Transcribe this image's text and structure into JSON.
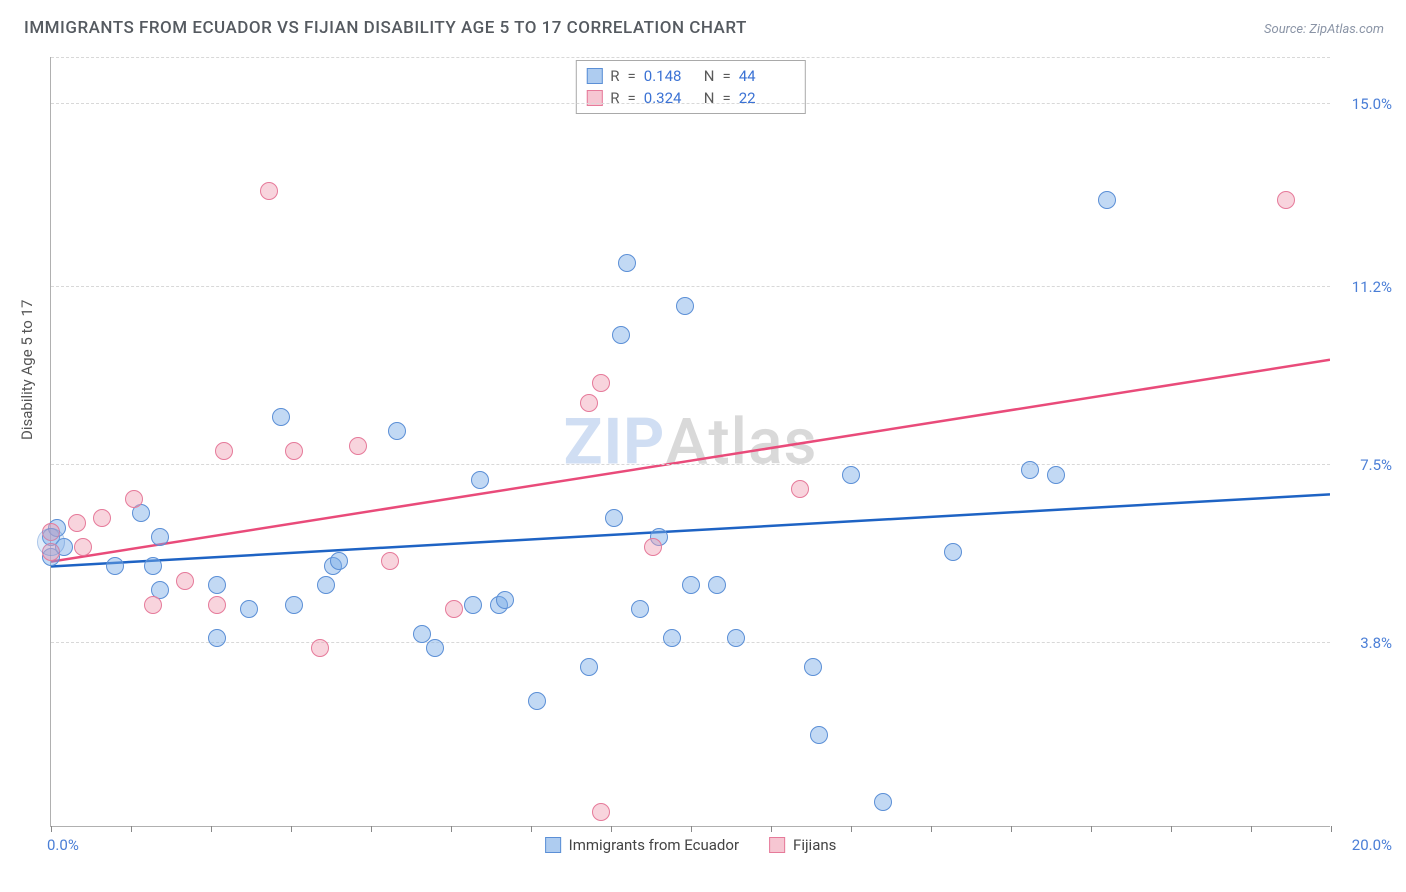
{
  "title": "IMMIGRANTS FROM ECUADOR VS FIJIAN DISABILITY AGE 5 TO 17 CORRELATION CHART",
  "source": "Source: ZipAtlas.com",
  "y_axis_label": "Disability Age 5 to 17",
  "watermark": {
    "zip": "ZIP",
    "atlas": "Atlas"
  },
  "chart": {
    "type": "scatter",
    "xlim": [
      0,
      20
    ],
    "ylim": [
      0,
      16
    ],
    "x_tick_step": 1.25,
    "x_start_label": "0.0%",
    "x_end_label": "20.0%",
    "y_ticks": [
      3.8,
      7.5,
      11.2,
      15.0
    ],
    "y_tick_labels": [
      "3.8%",
      "7.5%",
      "11.2%",
      "15.0%"
    ],
    "grid_color": "#d8d8d8",
    "background_color": "#ffffff",
    "marker_radius": 9,
    "series": [
      {
        "name": "Immigrants from Ecuador",
        "key": "ecuador",
        "color_fill": "rgba(120,170,230,0.45)",
        "color_stroke": "#5b8fd6",
        "trend_color": "#1e63c4",
        "trend": {
          "y_at_x0": 5.4,
          "y_at_xmax": 6.9
        },
        "stats": {
          "R": "0.148",
          "N": "44"
        },
        "points": [
          [
            0.0,
            6.0
          ],
          [
            0.0,
            5.6
          ],
          [
            0.1,
            6.2
          ],
          [
            0.2,
            5.8
          ],
          [
            1.0,
            5.4
          ],
          [
            1.4,
            6.5
          ],
          [
            1.6,
            5.4
          ],
          [
            1.7,
            4.9
          ],
          [
            1.7,
            6.0
          ],
          [
            2.6,
            5.0
          ],
          [
            2.6,
            3.9
          ],
          [
            3.1,
            4.5
          ],
          [
            3.6,
            8.5
          ],
          [
            3.8,
            4.6
          ],
          [
            4.3,
            5.0
          ],
          [
            4.4,
            5.4
          ],
          [
            4.5,
            5.5
          ],
          [
            5.4,
            8.2
          ],
          [
            5.8,
            4.0
          ],
          [
            6.0,
            3.7
          ],
          [
            6.6,
            4.6
          ],
          [
            6.7,
            7.2
          ],
          [
            7.0,
            4.6
          ],
          [
            7.1,
            4.7
          ],
          [
            7.6,
            2.6
          ],
          [
            8.4,
            3.3
          ],
          [
            8.8,
            6.4
          ],
          [
            8.9,
            10.2
          ],
          [
            9.0,
            11.7
          ],
          [
            9.2,
            4.5
          ],
          [
            9.5,
            6.0
          ],
          [
            9.7,
            3.9
          ],
          [
            9.9,
            10.8
          ],
          [
            10.0,
            5.0
          ],
          [
            10.4,
            5.0
          ],
          [
            10.7,
            3.9
          ],
          [
            11.9,
            3.3
          ],
          [
            12.0,
            1.9
          ],
          [
            12.5,
            7.3
          ],
          [
            13.0,
            0.5
          ],
          [
            14.1,
            5.7
          ],
          [
            15.3,
            7.4
          ],
          [
            15.7,
            7.3
          ],
          [
            16.5,
            13.0
          ]
        ]
      },
      {
        "name": "Fijians",
        "key": "fijians",
        "color_fill": "rgba(240,160,180,0.45)",
        "color_stroke": "#e67a9a",
        "trend_color": "#e94b7a",
        "trend": {
          "y_at_x0": 5.5,
          "y_at_xmax": 9.7
        },
        "stats": {
          "R": "0.324",
          "N": "22"
        },
        "points": [
          [
            0.0,
            6.1
          ],
          [
            0.0,
            5.7
          ],
          [
            0.4,
            6.3
          ],
          [
            0.5,
            5.8
          ],
          [
            0.8,
            6.4
          ],
          [
            1.3,
            6.8
          ],
          [
            1.6,
            4.6
          ],
          [
            2.1,
            5.1
          ],
          [
            2.6,
            4.6
          ],
          [
            2.7,
            7.8
          ],
          [
            3.4,
            13.2
          ],
          [
            3.8,
            7.8
          ],
          [
            4.2,
            3.7
          ],
          [
            4.8,
            7.9
          ],
          [
            5.3,
            5.5
          ],
          [
            6.3,
            4.5
          ],
          [
            8.4,
            8.8
          ],
          [
            8.6,
            9.2
          ],
          [
            8.6,
            0.3
          ],
          [
            9.4,
            5.8
          ],
          [
            11.7,
            7.0
          ],
          [
            19.3,
            13.0
          ]
        ]
      }
    ]
  },
  "stats_box_labels": {
    "R": "R",
    "N": "N",
    "eq": "="
  },
  "legend_labels": {
    "ecuador": "Immigrants from Ecuador",
    "fijians": "Fijians"
  }
}
